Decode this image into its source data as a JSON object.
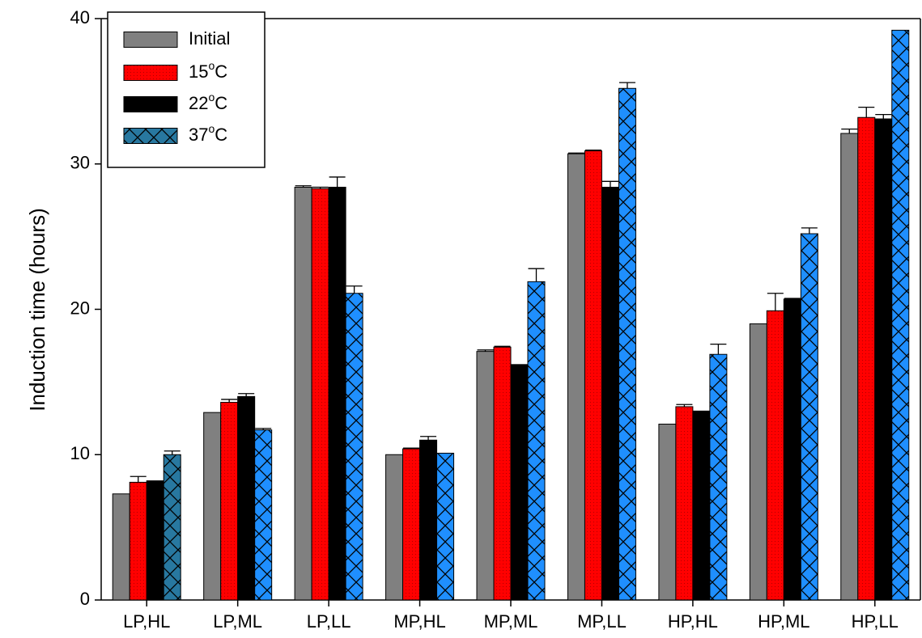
{
  "chart_data": {
    "type": "bar",
    "title": "",
    "xlabel": "",
    "ylabel": "Induction time (hours)",
    "ylim": [
      0,
      40
    ],
    "yticks": [
      0,
      10,
      20,
      30,
      40
    ],
    "categories": [
      "LP,HL",
      "LP,ML",
      "LP,LL",
      "MP,HL",
      "MP,ML",
      "MP,LL",
      "HP,HL",
      "HP,ML",
      "HP,LL"
    ],
    "series": [
      {
        "name": "Initial",
        "color": "#808080",
        "pattern": "solid",
        "values": [
          7.3,
          12.9,
          28.4,
          10.0,
          17.1,
          30.7,
          12.1,
          19.0,
          32.1
        ],
        "errors": [
          0.0,
          0.0,
          0.1,
          0.0,
          0.1,
          0.05,
          0.0,
          0.0,
          0.3
        ]
      },
      {
        "name": "15°C",
        "color": "#ff0000",
        "pattern": "dots",
        "values": [
          8.1,
          13.6,
          28.3,
          10.4,
          17.4,
          30.9,
          13.3,
          19.9,
          33.2
        ],
        "errors": [
          0.4,
          0.2,
          0.1,
          0.05,
          0.05,
          0.05,
          0.15,
          1.2,
          0.7
        ]
      },
      {
        "name": "22°C",
        "color": "#000000",
        "pattern": "solid",
        "values": [
          8.2,
          14.0,
          28.4,
          11.0,
          16.2,
          28.4,
          13.0,
          20.7,
          33.1
        ],
        "errors": [
          0.0,
          0.2,
          0.7,
          0.25,
          0.0,
          0.4,
          0.0,
          0.05,
          0.3
        ]
      },
      {
        "name": "37°C",
        "color": "#1f8fff",
        "legend_color": "#2878a0",
        "pattern": "crosshatch",
        "values": [
          10.0,
          11.7,
          21.1,
          10.1,
          21.9,
          35.2,
          16.9,
          25.2,
          39.2
        ],
        "errors": [
          0.25,
          0.1,
          0.5,
          0.0,
          0.9,
          0.4,
          0.7,
          0.4,
          0.0
        ]
      }
    ],
    "legend": {
      "position": "top-left",
      "items": [
        {
          "label": "Initial",
          "sup": "",
          "suffix": ""
        },
        {
          "label": "15",
          "sup": "o",
          "suffix": "C"
        },
        {
          "label": "22",
          "sup": "o",
          "suffix": "C"
        },
        {
          "label": "37",
          "sup": "o",
          "suffix": "C"
        }
      ]
    },
    "grid": false
  }
}
